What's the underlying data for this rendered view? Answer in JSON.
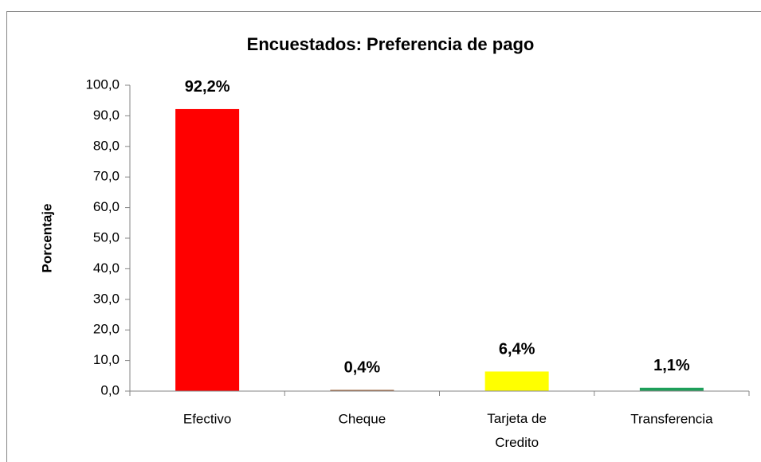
{
  "chart_data": {
    "type": "bar",
    "title": "Encuestados: Preferencia de pago",
    "y_label": "Porcentaje",
    "categories": [
      "Efectivo",
      "Cheque",
      "Tarjeta de Credito",
      "Transferencia"
    ],
    "values": [
      92.2,
      0.4,
      6.4,
      1.1
    ],
    "value_labels": [
      "92,2%",
      "0,4%",
      "6,4%",
      "1,1%"
    ],
    "colors": [
      "#ff0000",
      "#a0643c",
      "#ffff00",
      "#1e9f5a"
    ],
    "ylim": [
      0,
      100
    ],
    "yticks": [
      {
        "value": 0,
        "label": "0,0"
      },
      {
        "value": 10,
        "label": "10,0"
      },
      {
        "value": 20,
        "label": "20,0"
      },
      {
        "value": 30,
        "label": "30,0"
      },
      {
        "value": 40,
        "label": "40,0"
      },
      {
        "value": 50,
        "label": "50,0"
      },
      {
        "value": 60,
        "label": "60,0"
      },
      {
        "value": 70,
        "label": "70,0"
      },
      {
        "value": 80,
        "label": "80,0"
      },
      {
        "value": 90,
        "label": "90,0"
      },
      {
        "value": 100,
        "label": "100,0"
      }
    ],
    "grid": false
  }
}
